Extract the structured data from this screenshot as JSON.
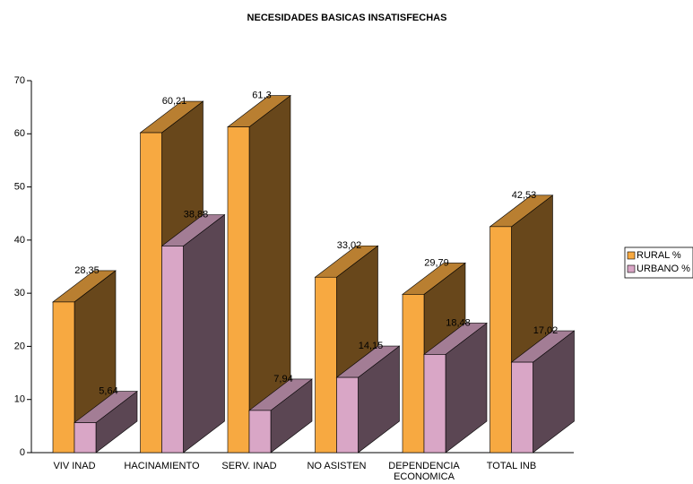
{
  "chart_data": {
    "type": "bar3d",
    "title": "NECESIDADES BASICAS INSATISFECHAS",
    "categories": [
      "VIV INAD",
      "HACINAMIENTO",
      "SERV. INAD",
      "NO ASISTEN",
      "DEPENDENCIA ECONOMICA",
      "TOTAL INB"
    ],
    "series": [
      {
        "name": "RURAL %",
        "color": "#f7a941",
        "values": [
          28.35,
          60.21,
          61.3,
          33.02,
          29.79,
          42.53
        ],
        "value_labels": [
          "28,35",
          "60,21",
          "61,3",
          "33,02",
          "29,79",
          "42,53"
        ]
      },
      {
        "name": "URBANO %",
        "color": "#d9a6c6",
        "values": [
          5.64,
          38.88,
          7.94,
          14.15,
          18.48,
          17.02
        ],
        "value_labels": [
          "5,64",
          "38,88",
          "7,94",
          "14,15",
          "18,48",
          "17,02"
        ]
      }
    ],
    "ylim": [
      0,
      70
    ],
    "yticks": [
      0,
      10,
      20,
      30,
      40,
      50,
      60,
      70
    ],
    "grid": false,
    "legend": "right"
  }
}
